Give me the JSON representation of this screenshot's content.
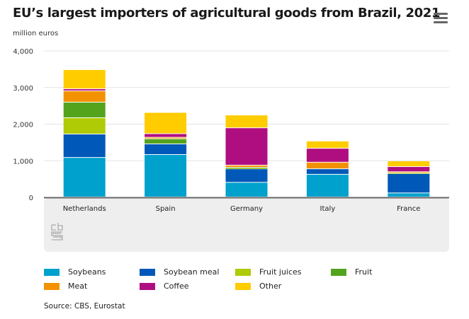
{
  "header": {
    "title": "EU’s largest importers of agricultural goods from Brazil, 2021",
    "subtitle": "million euros",
    "menu_icon": "hamburger-menu-icon"
  },
  "logo": "cbs-logo-icon",
  "source": "Source: CBS, Eurostat",
  "chart_data": {
    "type": "bar",
    "stacked": true,
    "title": "EU’s largest importers of agricultural goods from Brazil, 2021",
    "ylabel": "million euros",
    "xlabel": "",
    "ylim": [
      0,
      4000
    ],
    "yticks": [
      0,
      1000,
      2000,
      3000,
      4000
    ],
    "ytick_labels": [
      "0",
      "1,000",
      "2,000",
      "3,000",
      "4,000"
    ],
    "grid": true,
    "legend_position": "bottom",
    "categories": [
      "Netherlands",
      "Spain",
      "Germany",
      "Italy",
      "France"
    ],
    "series": [
      {
        "name": "Soybeans",
        "color": "#00a1cd",
        "values": [
          1080,
          1160,
          400,
          620,
          110
        ]
      },
      {
        "name": "Soybean meal",
        "color": "#0058b8",
        "values": [
          640,
          290,
          370,
          150,
          530
        ]
      },
      {
        "name": "Fruit juices",
        "color": "#afcb05",
        "values": [
          445,
          0,
          20,
          0,
          20
        ]
      },
      {
        "name": "Fruit",
        "color": "#53a31d",
        "values": [
          425,
          140,
          20,
          0,
          0
        ]
      },
      {
        "name": "Meat",
        "color": "#f39200",
        "values": [
          310,
          40,
          60,
          180,
          30
        ]
      },
      {
        "name": "Coffee",
        "color": "#af0e80",
        "values": [
          55,
          100,
          1020,
          380,
          140
        ]
      },
      {
        "name": "Other",
        "color": "#ffcc00",
        "values": [
          525,
          580,
          350,
          200,
          155
        ]
      }
    ]
  }
}
